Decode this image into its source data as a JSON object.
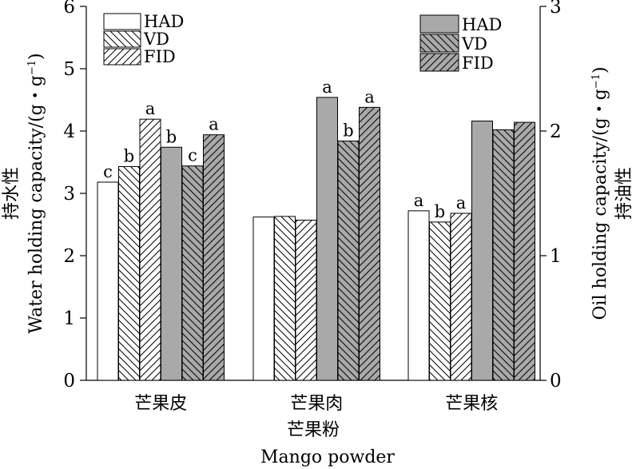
{
  "chart_data": {
    "type": "bar",
    "xlabel_cn": "芒果粉",
    "xlabel_en": "Mango powder",
    "categories": [
      "芒果皮",
      "芒果肉",
      "芒果核"
    ],
    "y_left": {
      "label_cn": "持水性",
      "label_en": "Water holding capacity/(g・g",
      "label_sup": "−1",
      "label_close": ")",
      "lim": [
        0,
        6
      ],
      "ticks": [
        "0",
        "1",
        "2",
        "3",
        "4",
        "5",
        "6"
      ]
    },
    "y_right": {
      "label_cn": "持油性",
      "label_en": "Oil holding capacity/(g・g",
      "label_sup": "−1",
      "label_close": ")",
      "lim": [
        0,
        3
      ],
      "ticks": [
        "0",
        "1",
        "2",
        "3"
      ]
    },
    "legend_left": [
      "HAD",
      "VD",
      "FID"
    ],
    "legend_right": [
      "HAD",
      "VD",
      "FID"
    ],
    "series": [
      {
        "name": "HAD",
        "metric": "water",
        "axis": "left",
        "pattern": "none",
        "fill": "#ffffff",
        "values": [
          3.18,
          2.62,
          2.72
        ],
        "labels": [
          "c",
          "",
          "a"
        ]
      },
      {
        "name": "VD",
        "metric": "water",
        "axis": "left",
        "pattern": "back",
        "fill": "#ffffff",
        "values": [
          3.43,
          2.63,
          2.54
        ],
        "labels": [
          "b",
          "",
          "b"
        ]
      },
      {
        "name": "FID",
        "metric": "water",
        "axis": "left",
        "pattern": "fwd",
        "fill": "#ffffff",
        "values": [
          4.19,
          2.57,
          2.68
        ],
        "labels": [
          "a",
          "",
          "a"
        ]
      },
      {
        "name": "HAD",
        "metric": "oil",
        "axis": "right",
        "pattern": "none",
        "fill": "#a9a9a9",
        "values": [
          1.87,
          2.27,
          2.08
        ],
        "labels": [
          "b",
          "a",
          ""
        ]
      },
      {
        "name": "VD",
        "metric": "oil",
        "axis": "right",
        "pattern": "back",
        "fill": "#a9a9a9",
        "values": [
          1.72,
          1.92,
          2.01
        ],
        "labels": [
          "c",
          "b",
          ""
        ]
      },
      {
        "name": "FID",
        "metric": "oil",
        "axis": "right",
        "pattern": "fwd",
        "fill": "#a9a9a9",
        "values": [
          1.97,
          2.19,
          2.07
        ],
        "labels": [
          "a",
          "a",
          ""
        ]
      }
    ]
  }
}
